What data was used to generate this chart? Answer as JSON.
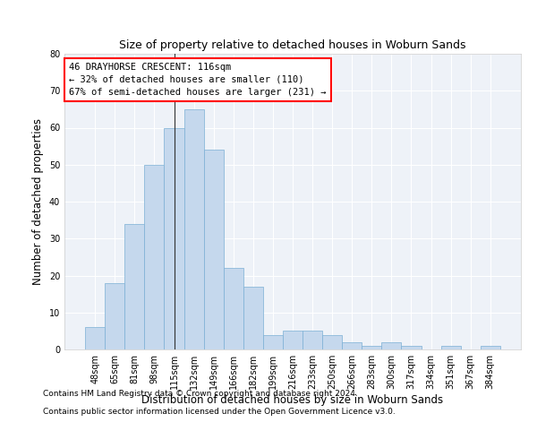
{
  "subtitle": "Size of property relative to detached houses in Woburn Sands",
  "xlabel": "Distribution of detached houses by size in Woburn Sands",
  "ylabel": "Number of detached properties",
  "categories": [
    "48sqm",
    "65sqm",
    "81sqm",
    "98sqm",
    "115sqm",
    "132sqm",
    "149sqm",
    "166sqm",
    "182sqm",
    "199sqm",
    "216sqm",
    "233sqm",
    "250sqm",
    "266sqm",
    "283sqm",
    "300sqm",
    "317sqm",
    "334sqm",
    "351sqm",
    "367sqm",
    "384sqm"
  ],
  "values": [
    6,
    18,
    34,
    50,
    60,
    65,
    54,
    22,
    17,
    4,
    5,
    5,
    4,
    2,
    1,
    2,
    1,
    0,
    1,
    0,
    1
  ],
  "bar_color": "#c5d8ed",
  "bar_edge_color": "#7bafd4",
  "bg_color": "#eef2f8",
  "grid_color": "#ffffff",
  "ylim": [
    0,
    80
  ],
  "yticks": [
    0,
    10,
    20,
    30,
    40,
    50,
    60,
    70,
    80
  ],
  "prop_bar_index": 4,
  "annotation_line_color": "#333333",
  "annotation_box_text_line1": "46 DRAYHORSE CRESCENT: 116sqm",
  "annotation_box_text_line2": "← 32% of detached houses are smaller (110)",
  "annotation_box_text_line3": "67% of semi-detached houses are larger (231) →",
  "footer1": "Contains HM Land Registry data © Crown copyright and database right 2024.",
  "footer2": "Contains public sector information licensed under the Open Government Licence v3.0.",
  "title_fontsize": 9.5,
  "subtitle_fontsize": 9,
  "annotation_fontsize": 7.5,
  "tick_fontsize": 7,
  "ylabel_fontsize": 8.5,
  "xlabel_fontsize": 8.5,
  "footer_fontsize": 6.5
}
